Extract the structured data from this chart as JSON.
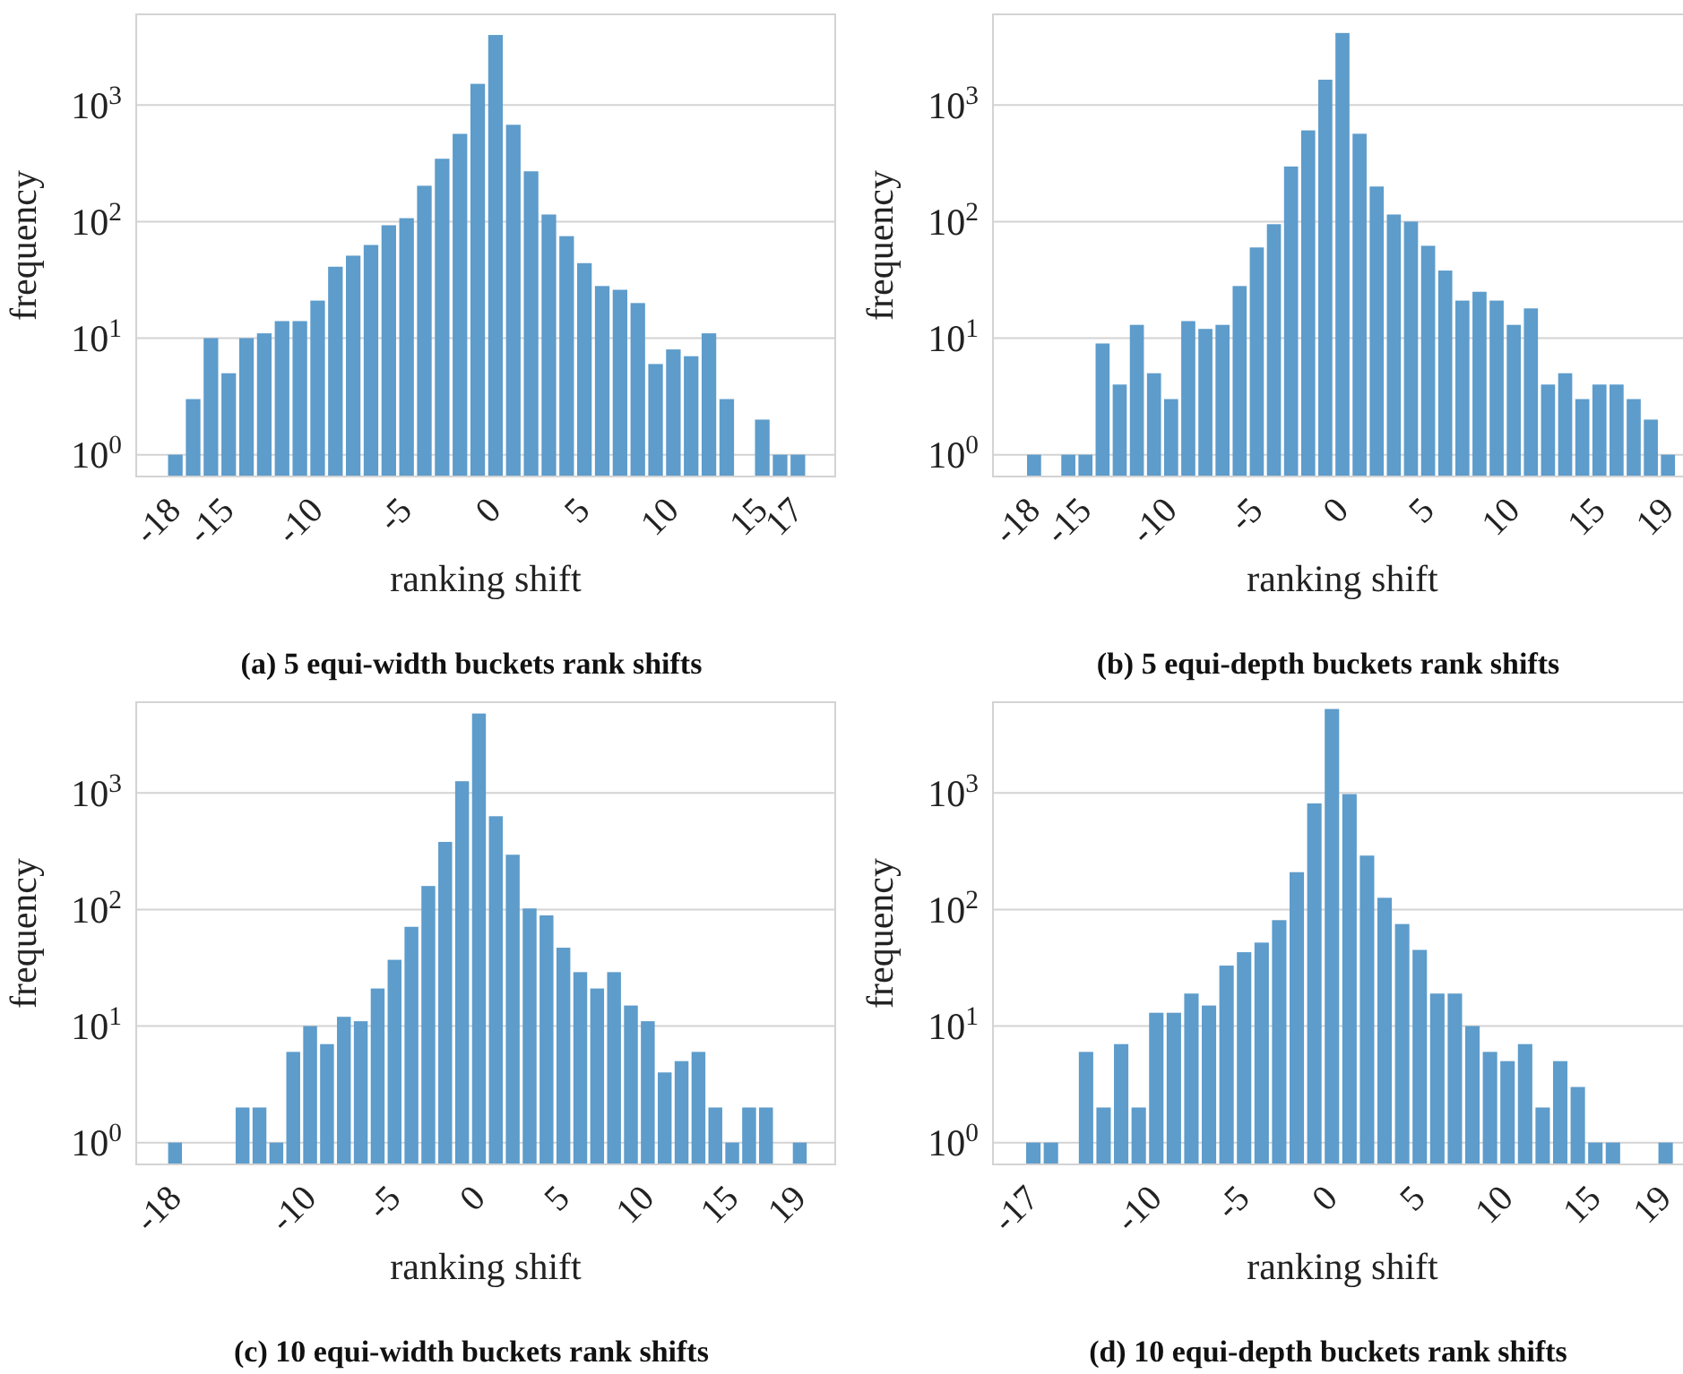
{
  "chart_data": [
    {
      "type": "bar",
      "title": "(a) 5 equi-width buckets rank shifts",
      "xlabel": "ranking shift",
      "ylabel": "frequency",
      "log": true,
      "grid": "y",
      "color": "#5d9ccb",
      "x": [
        -17,
        -16,
        -15,
        -14,
        -13,
        -12,
        -11,
        -10,
        -9,
        -8,
        -7,
        -6,
        -5,
        -4,
        -3,
        -2,
        -1,
        0,
        1,
        2,
        3,
        4,
        5,
        6,
        7,
        8,
        9,
        10,
        11,
        12,
        13,
        14,
        16,
        17,
        18
      ],
      "values": [
        1,
        3,
        10,
        5,
        10,
        11,
        14,
        14,
        21,
        41,
        51,
        63,
        93,
        107,
        203,
        346,
        566,
        1520,
        3990,
        677,
        270,
        115,
        75,
        44,
        28,
        26,
        20,
        6,
        8,
        7,
        11,
        3,
        2,
        1,
        1
      ],
      "xlim": [
        -19.2,
        20.1
      ],
      "xticks": [
        -18,
        -15,
        -10,
        -5,
        0,
        5,
        10,
        15,
        17
      ],
      "ylim": [
        0.65,
        6000
      ],
      "yticks": [
        {
          "value": 1,
          "label": "10$^{0}$"
        },
        {
          "value": 10,
          "label": "10$^{1}$"
        },
        {
          "value": 100,
          "label": "10$^{2}$"
        },
        {
          "value": 1000,
          "label": "10$^{3}$"
        }
      ]
    },
    {
      "type": "bar",
      "title": "(b) 5 equi-depth buckets rank shifts",
      "xlabel": "ranking shift",
      "ylabel": "frequency",
      "log": true,
      "grid": "y",
      "color": "#5d9ccb",
      "x": [
        -17,
        -15,
        -14,
        -13,
        -12,
        -11,
        -10,
        -9,
        -8,
        -7,
        -6,
        -5,
        -4,
        -3,
        -2,
        -1,
        0,
        1,
        2,
        3,
        4,
        5,
        6,
        7,
        8,
        9,
        10,
        11,
        12,
        13,
        14,
        15,
        16,
        17,
        18,
        19,
        20
      ],
      "values": [
        1,
        1,
        1,
        9,
        4,
        13,
        5,
        3,
        14,
        12,
        13,
        28,
        60,
        95,
        297,
        606,
        1650,
        4150,
        567,
        200,
        115,
        100,
        62,
        38,
        21,
        25,
        21,
        13,
        18,
        4,
        5,
        3,
        4,
        4,
        3,
        2,
        1
      ],
      "xlim": [
        -19.4,
        21.4
      ],
      "xticks": [
        -18,
        -15,
        -10,
        -5,
        0,
        5,
        10,
        15,
        19
      ],
      "ylim": [
        0.65,
        6000
      ],
      "yticks": [
        {
          "value": 1,
          "label": "10$^{0}$"
        },
        {
          "value": 10,
          "label": "10$^{1}$"
        },
        {
          "value": 100,
          "label": "10$^{2}$"
        },
        {
          "value": 1000,
          "label": "10$^{3}$"
        }
      ]
    },
    {
      "type": "bar",
      "title": "(c) 10 equi-width buckets rank shifts",
      "xlabel": "ranking shift",
      "ylabel": "frequency",
      "log": true,
      "grid": "y",
      "color": "#5d9ccb",
      "x": [
        -17,
        -13,
        -12,
        -11,
        -10,
        -9,
        -8,
        -7,
        -6,
        -5,
        -4,
        -3,
        -2,
        -1,
        0,
        1,
        2,
        3,
        4,
        5,
        6,
        7,
        8,
        9,
        10,
        11,
        12,
        13,
        14,
        15,
        16,
        17,
        18,
        20
      ],
      "values": [
        1,
        2,
        2,
        1,
        6,
        10,
        7,
        12,
        11,
        21,
        37,
        71,
        159,
        380,
        1260,
        4800,
        631,
        295,
        102,
        89,
        47,
        29,
        21,
        29,
        15,
        11,
        4,
        5,
        6,
        2,
        1,
        2,
        2,
        1
      ],
      "xlim": [
        -19.3,
        22.1
      ],
      "xticks": [
        -18,
        -10,
        -5,
        0,
        5,
        10,
        15,
        19
      ],
      "ylim": [
        0.65,
        6000
      ],
      "yticks": [
        {
          "value": 1,
          "label": "10$^{0}$"
        },
        {
          "value": 10,
          "label": "10$^{1}$"
        },
        {
          "value": 100,
          "label": "10$^{2}$"
        },
        {
          "value": 1000,
          "label": "10$^{3}$"
        }
      ]
    },
    {
      "type": "bar",
      "title": "(d) 10 equi-depth buckets rank shifts",
      "xlabel": "ranking shift",
      "ylabel": "frequency",
      "log": true,
      "grid": "y",
      "color": "#5d9ccb",
      "x": [
        -16,
        -15,
        -13,
        -12,
        -11,
        -10,
        -9,
        -8,
        -7,
        -6,
        -5,
        -4,
        -3,
        -2,
        -1,
        0,
        1,
        2,
        3,
        4,
        5,
        6,
        7,
        8,
        9,
        10,
        11,
        12,
        13,
        14,
        15,
        16,
        17,
        20
      ],
      "values": [
        1,
        1,
        6,
        2,
        7,
        2,
        13,
        13,
        19,
        15,
        33,
        43,
        52,
        81,
        209,
        813,
        5250,
        977,
        290,
        126,
        75,
        45,
        19,
        19,
        10,
        6,
        5,
        7,
        2,
        5,
        3,
        1,
        1,
        1
      ],
      "xlim": [
        -18.3,
        21.5
      ],
      "xticks": [
        -17,
        -10,
        -5,
        0,
        5,
        10,
        15,
        19
      ],
      "ylim": [
        0.65,
        6000
      ],
      "yticks": [
        {
          "value": 1,
          "label": "10$^{0}$"
        },
        {
          "value": 10,
          "label": "10$^{1}$"
        },
        {
          "value": 100,
          "label": "10$^{2}$"
        },
        {
          "value": 1000,
          "label": "10$^{3}$"
        }
      ]
    }
  ]
}
